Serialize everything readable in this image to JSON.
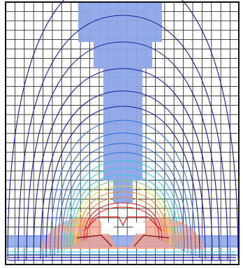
{
  "figure": {
    "description_visible_text": "",
    "grid": true,
    "background_color": "#ffffff",
    "colors": {
      "grid_line": "#333333",
      "electrode_fill": "#8ea6e8",
      "outer_contours": "#1a1aa0",
      "mid_contours": "#2f6fe0",
      "inner_contours": "#38c8e0",
      "green_contours": "#6fd46a",
      "yellow_contours": "#e8d63a",
      "orange_contours": "#f08a2a",
      "red_contours": "#e02020",
      "hot_fill": "#f4a08a"
    }
  }
}
